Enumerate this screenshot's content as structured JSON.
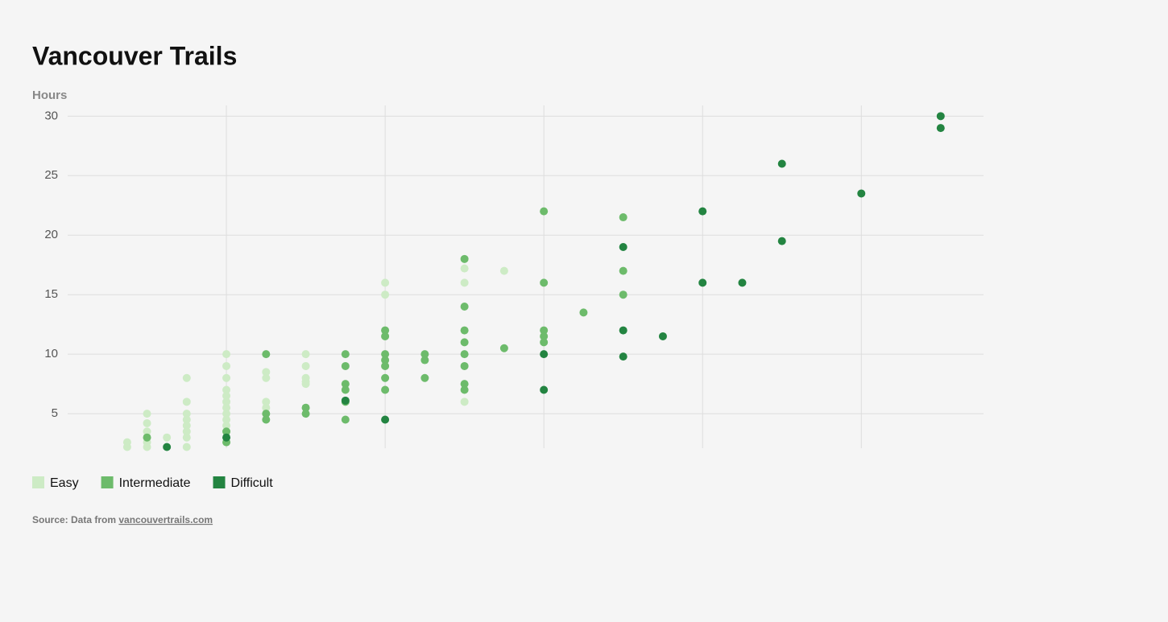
{
  "chart_data": {
    "type": "scatter",
    "title": "Vancouver Trails",
    "y_label": "Hours",
    "xlim": [
      0,
      57.7
    ],
    "xticks": [
      10,
      20,
      30,
      40,
      50
    ],
    "ylim": [
      2.1,
      30.9
    ],
    "yticks": [
      5,
      10,
      15,
      20,
      25,
      30
    ],
    "grid": true,
    "series": [
      {
        "name": "Easy",
        "color": "#cdebc5",
        "x": [
          3.75,
          3.75,
          5,
          5,
          5,
          5,
          5,
          5,
          6.25,
          7.5,
          7.5,
          7.5,
          7.5,
          7.5,
          7.5,
          7.5,
          7.5,
          10,
          10,
          10,
          10,
          10,
          10,
          10,
          10,
          10,
          10,
          10,
          10,
          12.5,
          12.5,
          12.5,
          12.5,
          15,
          15,
          15,
          15,
          15,
          20,
          20,
          25,
          25,
          25,
          27.5
        ],
        "values": [
          2.6,
          2.2,
          5,
          4.2,
          3.5,
          3,
          2.6,
          2.2,
          3,
          8,
          6,
          5,
          4.5,
          4,
          3.5,
          3,
          2.2,
          10,
          9,
          8,
          7,
          6.5,
          6,
          5.5,
          5,
          4.5,
          4,
          3.5,
          2.6,
          8.5,
          8,
          6,
          5.5,
          10,
          9,
          8,
          7.7,
          7.5,
          16,
          15,
          17.2,
          16,
          6,
          17
        ]
      },
      {
        "name": "Intermediate",
        "color": "#6dbb6b",
        "x": [
          5,
          10,
          10,
          12.5,
          12.5,
          12.5,
          15,
          15,
          17.5,
          17.5,
          17.5,
          17.5,
          17.5,
          17.5,
          20,
          20,
          20,
          20,
          20,
          20,
          20,
          22.5,
          22.5,
          22.5,
          25,
          25,
          25,
          25,
          25,
          25,
          25,
          25,
          27.5,
          30,
          30,
          30,
          30,
          30,
          32.5,
          35,
          35,
          35
        ],
        "values": [
          3,
          3.5,
          2.6,
          10,
          5,
          4.5,
          5.5,
          5,
          10,
          9,
          7.5,
          7,
          6,
          4.5,
          12,
          11.5,
          10,
          9.5,
          9,
          8,
          7,
          10,
          9.5,
          8,
          18,
          14,
          12,
          11,
          10,
          9,
          7.5,
          7,
          10.5,
          22,
          16,
          12,
          11.5,
          11,
          13.5,
          21.5,
          17,
          15
        ]
      },
      {
        "name": "Difficult",
        "color": "#238441",
        "x": [
          6.25,
          10,
          17.5,
          20,
          30,
          30,
          35,
          35,
          35,
          37.5,
          40,
          40,
          42.5,
          45,
          45,
          50,
          55,
          55
        ],
        "values": [
          2.2,
          3,
          6.1,
          4.5,
          10,
          7,
          19,
          12,
          9.8,
          11.5,
          22,
          16,
          16,
          26,
          19.5,
          23.5,
          30,
          29
        ]
      }
    ],
    "source_prefix": "Source: Data from",
    "source_link": "vancouvertrails.com"
  }
}
